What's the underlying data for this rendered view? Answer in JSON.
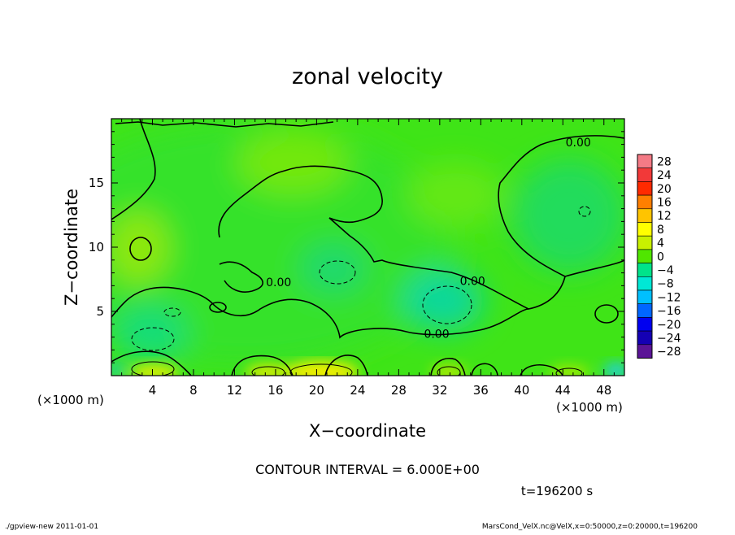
{
  "chart_data": {
    "type": "heatmap",
    "title": "zonal velocity",
    "xlabel": "X−coordinate",
    "ylabel": "Z−coordinate",
    "x_unit_left": "(×1000 m)",
    "x_unit_right": "(×1000 m)",
    "xlim": [
      0,
      50
    ],
    "ylim": [
      0,
      20
    ],
    "xticks": [
      4,
      8,
      12,
      16,
      20,
      24,
      28,
      32,
      36,
      40,
      44,
      48
    ],
    "yticks": [
      5,
      10,
      15
    ],
    "xtick_labels": [
      "4",
      "8",
      "12",
      "16",
      "20",
      "24",
      "28",
      "32",
      "36",
      "40",
      "44",
      "48"
    ],
    "ytick_labels": [
      "5",
      "10",
      "15"
    ],
    "colorbar_labels": [
      "28",
      "24",
      "20",
      "16",
      "12",
      "8",
      "4",
      "0",
      "−4",
      "−8",
      "−12",
      "−16",
      "−20",
      "−24",
      "−28"
    ],
    "colorbar_levels": [
      28,
      24,
      20,
      16,
      12,
      8,
      4,
      0,
      -4,
      -8,
      -12,
      -16,
      -20,
      -24,
      -28
    ],
    "colorbar_colors": [
      "#f47a85",
      "#f23939",
      "#ff2a00",
      "#ff7f00",
      "#ffc400",
      "#ffff00",
      "#c8f000",
      "#50e600",
      "#00e38a",
      "#00e8d5",
      "#00c0ff",
      "#0066ff",
      "#0000f0",
      "#1400b4",
      "#5a1496"
    ],
    "contour_labels": [
      {
        "text": "0.00",
        "x": 45.5,
        "z": 18.1
      },
      {
        "text": "0.00",
        "x": 16.3,
        "z": 7.2
      },
      {
        "text": "0.00",
        "x": 35.2,
        "z": 7.3
      },
      {
        "text": "0.00",
        "x": 31.7,
        "z": 3.2
      }
    ],
    "features": [
      {
        "kind": "minimum",
        "x": 3.5,
        "z": 3.0,
        "value": -8
      },
      {
        "kind": "minimum",
        "x": 21.5,
        "z": 8.4,
        "value": -6
      },
      {
        "kind": "minimum",
        "x": 33.0,
        "z": 5.6,
        "value": -8
      },
      {
        "kind": "maximum",
        "x": 21.0,
        "z": 0.5,
        "value": 12
      },
      {
        "kind": "maximum",
        "x": 4.5,
        "z": 0.6,
        "value": 10
      }
    ],
    "contour_interval": "CONTOUR INTERVAL = 6.000E+00",
    "time_label": "t=196200 s"
  },
  "footer": {
    "left": "./gpview-new   2011-01-01",
    "right": "MarsCond_VelX.nc@VelX,x=0:50000,z=0:20000,t=196200"
  }
}
